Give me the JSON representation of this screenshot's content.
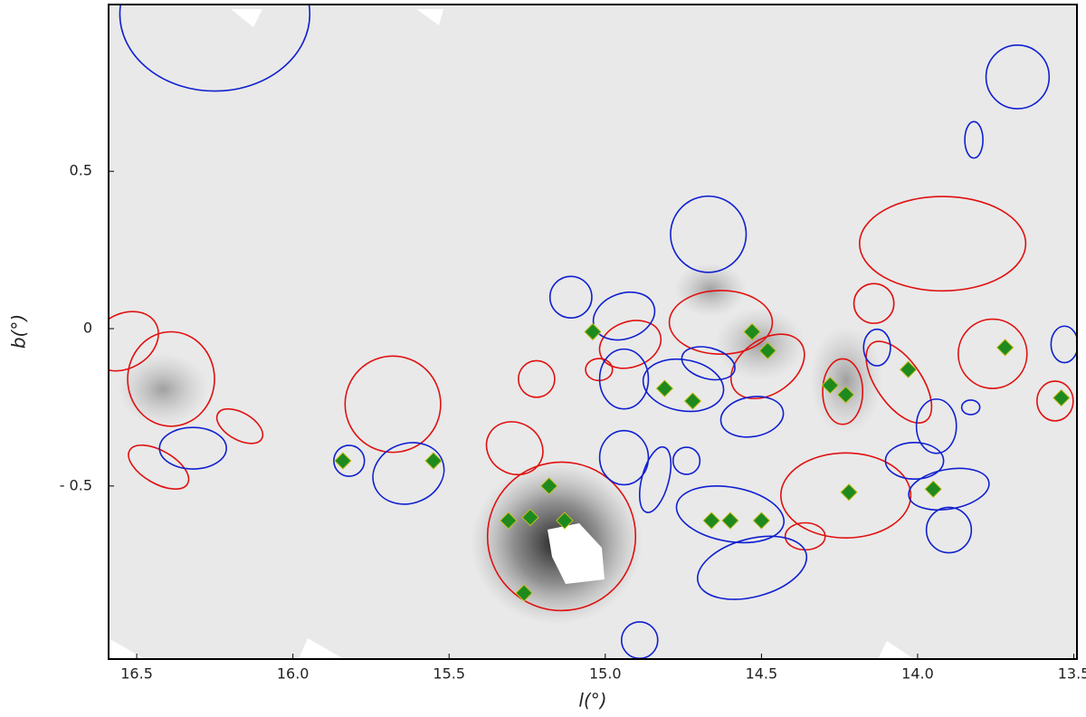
{
  "chart_data": {
    "type": "scatter",
    "xlabel": "l(°)",
    "ylabel": "b(°)",
    "xlim": [
      16.59,
      13.49
    ],
    "ylim": [
      -1.05,
      1.03
    ],
    "xticks": [
      16.5,
      {
        "value": 16.0,
        "label": "16.0"
      },
      15.5,
      {
        "value": 15.0,
        "label": "15.0"
      },
      14.5,
      {
        "value": 14.0,
        "label": "14.0"
      },
      13.5
    ],
    "yticks": [
      {
        "value": -0.5,
        "label": "- 0.5"
      },
      0,
      0.5
    ],
    "series": [
      {
        "color": "#e01010",
        "marker": "ellipse",
        "x": [
          13.92,
          14.14,
          14.63,
          14.92,
          14.48,
          15.02,
          15.22,
          14.24,
          14.06,
          13.76,
          13.56,
          16.54,
          16.39,
          16.17,
          16.43,
          15.68,
          15.29,
          15.14,
          14.23,
          14.36
        ],
        "values": [
          0.27,
          0.08,
          0.02,
          -0.05,
          -0.12,
          -0.13,
          -0.16,
          -0.2,
          -0.17,
          -0.08,
          -0.23,
          -0.04,
          -0.16,
          -0.31,
          -0.44,
          -0.24,
          -0.38,
          -0.66,
          -0.53,
          -0.66
        ],
        "rx": [
          0.266,
          0.064,
          0.165,
          0.101,
          0.13,
          0.043,
          0.058,
          0.064,
          0.072,
          0.11,
          0.058,
          0.116,
          0.139,
          0.081,
          0.107,
          0.153,
          0.093,
          0.237,
          0.208,
          0.064
        ],
        "ry": [
          0.15,
          0.063,
          0.101,
          0.072,
          0.086,
          0.035,
          0.058,
          0.104,
          0.15,
          0.11,
          0.063,
          0.086,
          0.15,
          0.043,
          0.052,
          0.153,
          0.081,
          0.236,
          0.135,
          0.043
        ],
        "angle": [
          0,
          0,
          0,
          -20,
          -35,
          0,
          0,
          0,
          -35,
          0,
          0,
          -30,
          0,
          30,
          30,
          0,
          30,
          0,
          0,
          0
        ]
      },
      {
        "color": "#1020d0",
        "marker": "ellipse",
        "x": [
          16.25,
          13.68,
          13.82,
          14.67,
          15.11,
          14.94,
          14.94,
          14.75,
          14.67,
          14.53,
          14.13,
          13.94,
          13.83,
          13.53,
          16.32,
          15.82,
          15.63,
          14.94,
          14.74,
          14.84,
          14.6,
          14.53,
          14.01,
          13.9,
          13.9,
          14.89
        ],
        "values": [
          1.0,
          0.8,
          0.6,
          0.3,
          0.1,
          0.04,
          -0.16,
          -0.18,
          -0.11,
          -0.28,
          -0.06,
          -0.31,
          -0.25,
          -0.05,
          -0.38,
          -0.42,
          -0.46,
          -0.41,
          -0.42,
          -0.48,
          -0.59,
          -0.76,
          -0.42,
          -0.51,
          -0.64,
          -0.99
        ],
        "rx": [
          0.304,
          0.101,
          0.029,
          0.121,
          0.067,
          0.101,
          0.078,
          0.13,
          0.087,
          0.101,
          0.043,
          0.064,
          0.029,
          0.043,
          0.107,
          0.049,
          0.116,
          0.078,
          0.043,
          0.043,
          0.174,
          0.179,
          0.093,
          0.13,
          0.072,
          0.058
        ],
        "ry": [
          0.245,
          0.101,
          0.058,
          0.121,
          0.066,
          0.072,
          0.095,
          0.081,
          0.049,
          0.063,
          0.058,
          0.086,
          0.023,
          0.058,
          0.066,
          0.049,
          0.095,
          0.086,
          0.043,
          0.107,
          0.086,
          0.092,
          0.058,
          0.063,
          0.072,
          0.058
        ],
        "angle": [
          0,
          0,
          0,
          0,
          0,
          -20,
          0,
          10,
          15,
          -10,
          0,
          0,
          0,
          0,
          0,
          0,
          -20,
          0,
          0,
          15,
          10,
          -15,
          0,
          -10,
          0,
          0
        ]
      },
      {
        "color": "#1e8a1e",
        "marker": "diamond",
        "x": [
          15.04,
          14.81,
          14.72,
          14.53,
          14.48,
          14.28,
          14.23,
          14.03,
          13.72,
          13.54,
          15.84,
          15.55,
          15.18,
          15.31,
          15.24,
          15.13,
          15.26,
          14.66,
          14.6,
          14.5,
          14.22,
          13.95
        ],
        "values": [
          -0.01,
          -0.19,
          -0.23,
          -0.01,
          -0.07,
          -0.18,
          -0.21,
          -0.13,
          -0.06,
          -0.22,
          -0.42,
          -0.42,
          -0.5,
          -0.61,
          -0.6,
          -0.61,
          -0.84,
          -0.61,
          -0.61,
          -0.61,
          -0.52,
          -0.51
        ]
      }
    ]
  }
}
